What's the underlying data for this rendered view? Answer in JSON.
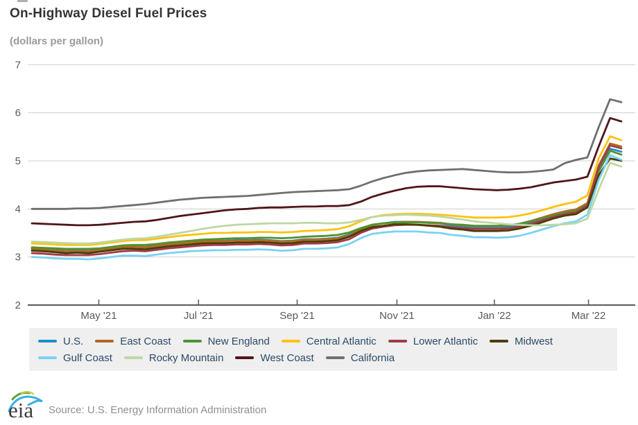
{
  "header": {
    "title": "On-Highway Diesel Fuel Prices",
    "subtitle": "(dollars per gallon)"
  },
  "chart_data": {
    "type": "line",
    "title": "On-Highway Diesel Fuel Prices",
    "ylabel": "dollars per gallon",
    "ylim": [
      2,
      7
    ],
    "y_ticks": [
      7,
      6,
      5,
      4,
      3,
      2
    ],
    "grid": "horizontal",
    "legend_position": "bottom",
    "x_unit": "weekly observations, ~Mar 2021 to ~Mar 2022",
    "x_ticks": [
      {
        "label": "May '21",
        "week": 5.9
      },
      {
        "label": "Jul '21",
        "week": 14.7
      },
      {
        "label": "Sep '21",
        "week": 23.4
      },
      {
        "label": "Nov '21",
        "week": 32.2
      },
      {
        "label": "Jan '22",
        "week": 40.8
      },
      {
        "label": "Mar '22",
        "week": 49.1
      }
    ],
    "series": [
      {
        "name": "U.S.",
        "color": "#1d8ecb",
        "values": [
          3.18,
          3.17,
          3.15,
          3.13,
          3.14,
          3.13,
          3.16,
          3.19,
          3.22,
          3.22,
          3.21,
          3.24,
          3.27,
          3.29,
          3.31,
          3.33,
          3.34,
          3.34,
          3.35,
          3.35,
          3.36,
          3.35,
          3.33,
          3.34,
          3.37,
          3.37,
          3.38,
          3.4,
          3.47,
          3.59,
          3.67,
          3.7,
          3.73,
          3.73,
          3.73,
          3.71,
          3.7,
          3.66,
          3.64,
          3.61,
          3.61,
          3.61,
          3.62,
          3.66,
          3.72,
          3.79,
          3.87,
          3.93,
          3.96,
          4.1,
          4.85,
          5.25,
          5.19
        ]
      },
      {
        "name": "East Coast",
        "color": "#b16a21",
        "values": [
          3.16,
          3.15,
          3.13,
          3.12,
          3.12,
          3.12,
          3.14,
          3.17,
          3.2,
          3.21,
          3.2,
          3.23,
          3.26,
          3.28,
          3.3,
          3.32,
          3.33,
          3.33,
          3.34,
          3.34,
          3.35,
          3.34,
          3.32,
          3.33,
          3.36,
          3.36,
          3.37,
          3.39,
          3.45,
          3.57,
          3.66,
          3.7,
          3.72,
          3.73,
          3.73,
          3.72,
          3.71,
          3.68,
          3.66,
          3.64,
          3.64,
          3.64,
          3.65,
          3.69,
          3.75,
          3.82,
          3.89,
          3.95,
          3.99,
          4.12,
          4.9,
          5.36,
          5.3
        ]
      },
      {
        "name": "New England",
        "color": "#52922f",
        "values": [
          3.2,
          3.19,
          3.18,
          3.17,
          3.17,
          3.17,
          3.18,
          3.21,
          3.24,
          3.25,
          3.25,
          3.27,
          3.3,
          3.32,
          3.34,
          3.36,
          3.37,
          3.38,
          3.39,
          3.39,
          3.4,
          3.4,
          3.39,
          3.4,
          3.42,
          3.43,
          3.44,
          3.46,
          3.51,
          3.6,
          3.67,
          3.7,
          3.72,
          3.72,
          3.72,
          3.71,
          3.7,
          3.68,
          3.67,
          3.65,
          3.65,
          3.65,
          3.66,
          3.69,
          3.74,
          3.8,
          3.86,
          3.92,
          3.96,
          4.08,
          4.78,
          5.21,
          5.13
        ]
      },
      {
        "name": "Central Atlantic",
        "color": "#fcc211",
        "values": [
          3.28,
          3.27,
          3.26,
          3.25,
          3.25,
          3.25,
          3.27,
          3.3,
          3.33,
          3.35,
          3.35,
          3.38,
          3.41,
          3.44,
          3.46,
          3.48,
          3.5,
          3.5,
          3.51,
          3.51,
          3.52,
          3.52,
          3.51,
          3.52,
          3.54,
          3.55,
          3.56,
          3.58,
          3.64,
          3.74,
          3.83,
          3.87,
          3.89,
          3.9,
          3.9,
          3.89,
          3.88,
          3.86,
          3.84,
          3.82,
          3.82,
          3.82,
          3.83,
          3.86,
          3.91,
          3.97,
          4.04,
          4.1,
          4.15,
          4.28,
          5.05,
          5.51,
          5.43
        ]
      },
      {
        "name": "Lower Atlantic",
        "color": "#a23b4b",
        "values": [
          3.08,
          3.07,
          3.05,
          3.04,
          3.04,
          3.04,
          3.06,
          3.09,
          3.12,
          3.13,
          3.12,
          3.15,
          3.18,
          3.2,
          3.22,
          3.24,
          3.25,
          3.25,
          3.26,
          3.26,
          3.27,
          3.26,
          3.24,
          3.25,
          3.28,
          3.28,
          3.29,
          3.31,
          3.37,
          3.5,
          3.59,
          3.63,
          3.66,
          3.67,
          3.67,
          3.66,
          3.65,
          3.62,
          3.6,
          3.58,
          3.58,
          3.58,
          3.59,
          3.63,
          3.69,
          3.76,
          3.83,
          3.89,
          3.93,
          4.07,
          4.87,
          5.32,
          5.26
        ]
      },
      {
        "name": "Midwest",
        "color": "#4c3d04",
        "values": [
          3.13,
          3.12,
          3.1,
          3.08,
          3.09,
          3.08,
          3.11,
          3.14,
          3.17,
          3.17,
          3.16,
          3.19,
          3.22,
          3.24,
          3.26,
          3.28,
          3.29,
          3.29,
          3.3,
          3.3,
          3.31,
          3.3,
          3.28,
          3.29,
          3.32,
          3.32,
          3.33,
          3.35,
          3.42,
          3.54,
          3.62,
          3.65,
          3.68,
          3.68,
          3.67,
          3.65,
          3.63,
          3.59,
          3.57,
          3.54,
          3.54,
          3.54,
          3.55,
          3.59,
          3.65,
          3.72,
          3.8,
          3.86,
          3.89,
          4.03,
          4.7,
          5.05,
          5.0
        ]
      },
      {
        "name": "Gulf Coast",
        "color": "#7ad2f4",
        "values": [
          3.0,
          2.99,
          2.97,
          2.96,
          2.96,
          2.95,
          2.97,
          3.0,
          3.03,
          3.03,
          3.02,
          3.05,
          3.08,
          3.1,
          3.12,
          3.13,
          3.14,
          3.14,
          3.15,
          3.15,
          3.16,
          3.15,
          3.13,
          3.14,
          3.17,
          3.17,
          3.18,
          3.2,
          3.27,
          3.39,
          3.48,
          3.51,
          3.53,
          3.53,
          3.53,
          3.51,
          3.5,
          3.46,
          3.44,
          3.41,
          3.41,
          3.4,
          3.41,
          3.44,
          3.5,
          3.57,
          3.64,
          3.7,
          3.74,
          3.88,
          4.6,
          5.12,
          5.02
        ]
      },
      {
        "name": "Rocky Mountain",
        "color": "#bdd8a3",
        "values": [
          3.32,
          3.31,
          3.3,
          3.29,
          3.28,
          3.28,
          3.3,
          3.33,
          3.36,
          3.38,
          3.39,
          3.42,
          3.46,
          3.5,
          3.54,
          3.58,
          3.62,
          3.65,
          3.67,
          3.68,
          3.69,
          3.7,
          3.7,
          3.7,
          3.71,
          3.71,
          3.7,
          3.7,
          3.72,
          3.77,
          3.83,
          3.86,
          3.87,
          3.88,
          3.87,
          3.86,
          3.84,
          3.81,
          3.78,
          3.74,
          3.72,
          3.7,
          3.68,
          3.67,
          3.66,
          3.66,
          3.67,
          3.68,
          3.7,
          3.8,
          4.4,
          4.96,
          4.88
        ]
      },
      {
        "name": "West Coast",
        "color": "#511418",
        "values": [
          3.7,
          3.69,
          3.68,
          3.67,
          3.66,
          3.66,
          3.67,
          3.69,
          3.71,
          3.73,
          3.74,
          3.77,
          3.81,
          3.85,
          3.88,
          3.91,
          3.94,
          3.97,
          3.99,
          4.0,
          4.02,
          4.03,
          4.03,
          4.04,
          4.05,
          4.05,
          4.06,
          4.06,
          4.08,
          4.15,
          4.25,
          4.32,
          4.38,
          4.43,
          4.46,
          4.47,
          4.47,
          4.45,
          4.43,
          4.41,
          4.4,
          4.39,
          4.4,
          4.42,
          4.45,
          4.5,
          4.55,
          4.58,
          4.61,
          4.67,
          5.3,
          5.89,
          5.82
        ]
      },
      {
        "name": "California",
        "color": "#6f6f6f",
        "values": [
          4.0,
          4.0,
          4.0,
          4.0,
          4.01,
          4.01,
          4.02,
          4.04,
          4.06,
          4.08,
          4.1,
          4.13,
          4.16,
          4.19,
          4.21,
          4.23,
          4.24,
          4.25,
          4.26,
          4.27,
          4.29,
          4.31,
          4.33,
          4.35,
          4.36,
          4.37,
          4.38,
          4.39,
          4.41,
          4.48,
          4.57,
          4.64,
          4.7,
          4.75,
          4.78,
          4.8,
          4.81,
          4.82,
          4.83,
          4.81,
          4.79,
          4.77,
          4.76,
          4.76,
          4.77,
          4.79,
          4.82,
          4.95,
          5.02,
          5.07,
          5.7,
          6.28,
          6.22
        ]
      }
    ]
  },
  "footer": {
    "logo_text": "eia",
    "source": "Source: U.S. Energy Information Administration"
  }
}
